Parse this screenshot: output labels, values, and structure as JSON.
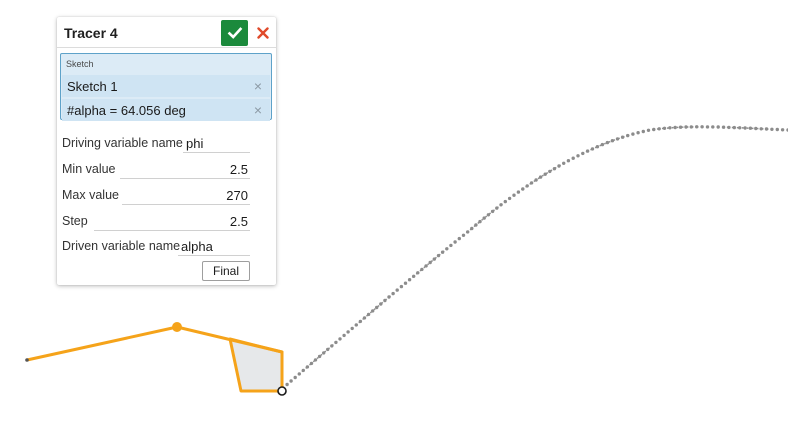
{
  "dialog": {
    "title": "Tracer 4",
    "selection_label": "Sketch",
    "selections": [
      "Sketch 1",
      "#alpha = 64.056 deg"
    ],
    "fields": [
      {
        "label": "Driving variable name",
        "value": "phi"
      },
      {
        "label": "Min value",
        "value": "2.5"
      },
      {
        "label": "Max value",
        "value": "270"
      },
      {
        "label": "Step",
        "value": "2.5"
      },
      {
        "label": "Driven variable name",
        "value": "alpha"
      }
    ],
    "final_label": "Final"
  },
  "colors": {
    "accent_ok": "#1b8a3c",
    "close_red": "#e04a2b",
    "selection_bg": "#dcebf6",
    "selection_border": "#5ea2c9",
    "sketch_orange": "#f5a31a",
    "trace_gray": "#8c8c8c"
  },
  "icons": {
    "ok": "checkmark-icon",
    "close": "close-x-icon",
    "remove": "remove-x-icon"
  }
}
